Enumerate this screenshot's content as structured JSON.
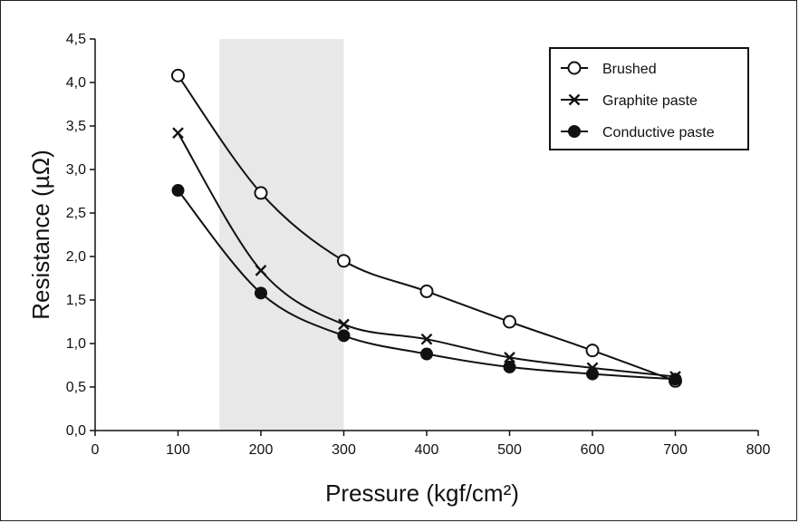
{
  "chart_data": {
    "type": "line",
    "title": "",
    "xlabel": "Pressure (kgf/cm²)",
    "ylabel": "Resistance (µΩ)",
    "xlim": [
      0,
      800
    ],
    "ylim": [
      0,
      4.5
    ],
    "x_ticks": [
      0,
      100,
      200,
      300,
      400,
      500,
      600,
      700,
      800
    ],
    "x_tick_labels": [
      "0",
      "100",
      "200",
      "300",
      "400",
      "500",
      "600",
      "700",
      "800"
    ],
    "y_ticks": [
      0,
      0.5,
      1.0,
      1.5,
      2.0,
      2.5,
      3.0,
      3.5,
      4.0,
      4.5
    ],
    "y_tick_labels": [
      "0,0",
      "0,5",
      "1,0",
      "1,5",
      "2,0",
      "2,5",
      "3,0",
      "3,5",
      "4,0",
      "4,5"
    ],
    "shaded_region": {
      "x_start": 150,
      "x_end": 300,
      "color": "#e8e8e8"
    },
    "grid": false,
    "legend_position": "top-right",
    "x": [
      100,
      200,
      300,
      400,
      500,
      600,
      700
    ],
    "series": [
      {
        "name": "Brushed",
        "marker": "open-circle",
        "values": [
          4.08,
          2.73,
          1.95,
          1.6,
          1.25,
          0.92,
          0.57
        ]
      },
      {
        "name": "Graphite paste",
        "marker": "x",
        "values": [
          3.42,
          1.84,
          1.22,
          1.05,
          0.84,
          0.72,
          0.62
        ]
      },
      {
        "name": "Conductive paste",
        "marker": "filled-circle",
        "values": [
          2.76,
          1.58,
          1.09,
          0.88,
          0.73,
          0.65,
          0.59
        ]
      }
    ]
  }
}
